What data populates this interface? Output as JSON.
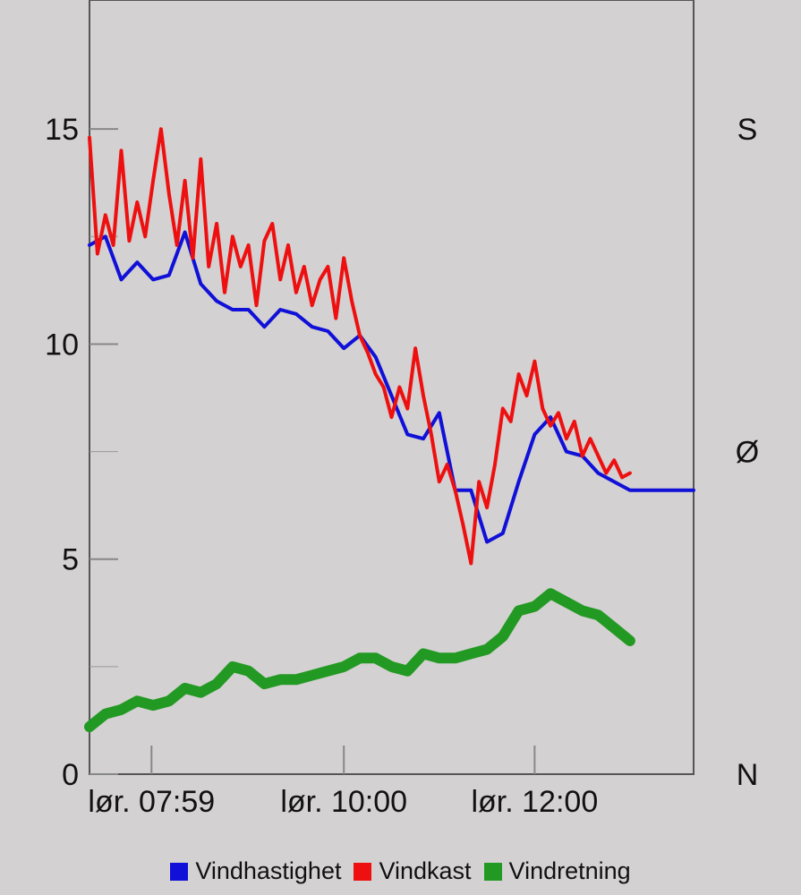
{
  "chart_data": {
    "type": "line",
    "y_ticks": [
      "0",
      "5",
      "10",
      "15"
    ],
    "ylim": [
      0,
      18
    ],
    "right_axis_labels": [
      "N",
      "Ø",
      "S"
    ],
    "x_ticks": [
      "lør. 07:59",
      "lør. 10:00",
      "lør. 12:00"
    ],
    "x_range": [
      "07:20",
      "13:40"
    ],
    "grid": false,
    "legend_position": "bottom",
    "series": [
      {
        "name": "Vindhastighet",
        "color": "#1010d8",
        "x": [
          "07:20",
          "07:30",
          "07:40",
          "07:50",
          "08:00",
          "08:10",
          "08:20",
          "08:30",
          "08:40",
          "08:50",
          "09:00",
          "09:10",
          "09:20",
          "09:30",
          "09:40",
          "09:50",
          "10:00",
          "10:10",
          "10:20",
          "10:30",
          "10:40",
          "10:50",
          "11:00",
          "11:10",
          "11:20",
          "11:30",
          "11:40",
          "11:50",
          "12:00",
          "12:10",
          "12:20",
          "12:30",
          "12:40",
          "12:50",
          "13:00",
          "13:10",
          "13:20",
          "13:30",
          "13:40"
        ],
        "values": [
          12.3,
          12.5,
          11.5,
          11.9,
          11.5,
          11.6,
          12.6,
          11.4,
          11.0,
          10.8,
          10.8,
          10.4,
          10.8,
          10.7,
          10.4,
          10.3,
          9.9,
          10.2,
          9.7,
          8.8,
          7.9,
          7.8,
          8.4,
          6.6,
          6.6,
          5.4,
          5.6,
          6.8,
          7.9,
          8.3,
          7.5,
          7.4,
          7.0,
          6.8,
          6.6,
          6.6,
          6.6,
          6.6,
          6.6
        ]
      },
      {
        "name": "Vindkast",
        "color": "#ee1010",
        "x": [
          "07:20",
          "07:25",
          "07:30",
          "07:35",
          "07:40",
          "07:45",
          "07:50",
          "07:55",
          "08:00",
          "08:05",
          "08:10",
          "08:15",
          "08:20",
          "08:25",
          "08:30",
          "08:35",
          "08:40",
          "08:45",
          "08:50",
          "08:55",
          "09:00",
          "09:05",
          "09:10",
          "09:15",
          "09:20",
          "09:25",
          "09:30",
          "09:35",
          "09:40",
          "09:45",
          "09:50",
          "09:55",
          "10:00",
          "10:05",
          "10:10",
          "10:15",
          "10:20",
          "10:25",
          "10:30",
          "10:35",
          "10:40",
          "10:45",
          "10:50",
          "10:55",
          "11:00",
          "11:05",
          "11:10",
          "11:15",
          "11:20",
          "11:25",
          "11:30",
          "11:35",
          "11:40",
          "11:45",
          "11:50",
          "11:55",
          "12:00",
          "12:05",
          "12:10",
          "12:15",
          "12:20",
          "12:25",
          "12:30",
          "12:35",
          "12:40",
          "12:45",
          "12:50",
          "12:55",
          "13:00"
        ],
        "values": [
          14.8,
          12.1,
          13.0,
          12.3,
          14.5,
          12.4,
          13.3,
          12.5,
          13.8,
          15.0,
          13.5,
          12.3,
          13.8,
          12.0,
          14.3,
          11.8,
          12.8,
          11.2,
          12.5,
          11.8,
          12.3,
          10.9,
          12.4,
          12.8,
          11.5,
          12.3,
          11.2,
          11.8,
          10.9,
          11.5,
          11.8,
          10.6,
          12.0,
          11.0,
          10.2,
          9.8,
          9.3,
          9.0,
          8.3,
          9.0,
          8.5,
          9.9,
          8.8,
          7.9,
          6.8,
          7.2,
          6.6,
          5.8,
          4.9,
          6.8,
          6.2,
          7.2,
          8.5,
          8.2,
          9.3,
          8.8,
          9.6,
          8.5,
          8.1,
          8.4,
          7.8,
          8.2,
          7.4,
          7.8,
          7.4,
          7.0,
          7.3,
          6.9,
          7.0
        ]
      },
      {
        "name": "Vindretning",
        "color": "#229922",
        "x": [
          "07:20",
          "07:30",
          "07:40",
          "07:50",
          "08:00",
          "08:10",
          "08:20",
          "08:30",
          "08:40",
          "08:50",
          "09:00",
          "09:10",
          "09:20",
          "09:30",
          "09:40",
          "09:50",
          "10:00",
          "10:10",
          "10:20",
          "10:30",
          "10:40",
          "10:50",
          "11:00",
          "11:10",
          "11:20",
          "11:30",
          "11:40",
          "11:50",
          "12:00",
          "12:10",
          "12:20",
          "12:30",
          "12:40",
          "12:50",
          "13:00"
        ],
        "values": [
          1.1,
          1.4,
          1.5,
          1.7,
          1.6,
          1.7,
          2.0,
          1.9,
          2.1,
          2.5,
          2.4,
          2.1,
          2.2,
          2.2,
          2.3,
          2.4,
          2.5,
          2.7,
          2.7,
          2.5,
          2.4,
          2.8,
          2.7,
          2.7,
          2.8,
          2.9,
          3.2,
          3.8,
          3.9,
          4.2,
          4.0,
          3.8,
          3.7,
          3.4,
          3.1
        ]
      }
    ]
  }
}
